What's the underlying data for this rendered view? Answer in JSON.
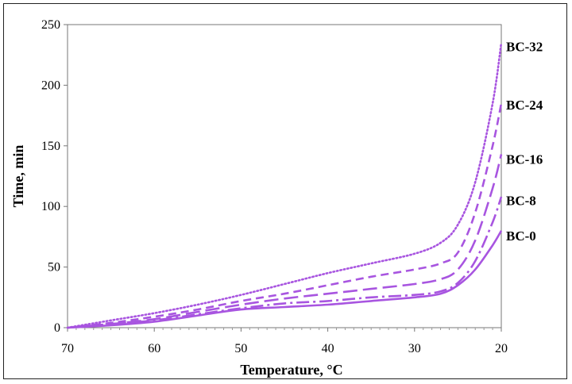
{
  "chart_data": {
    "type": "line",
    "title": "",
    "xlabel": "Temperature, °C",
    "ylabel": "Time, min",
    "xlim": [
      70,
      20
    ],
    "ylim": [
      0,
      250
    ],
    "xticks": [
      70,
      60,
      50,
      40,
      30,
      20
    ],
    "yticks": [
      0,
      50,
      100,
      150,
      200,
      250
    ],
    "grid": false,
    "line_color": "#a855e0",
    "series": [
      {
        "name": "BC-32",
        "style": "dotted",
        "points": [
          [
            70,
            0
          ],
          [
            65,
            6
          ],
          [
            60,
            12
          ],
          [
            55,
            19
          ],
          [
            50,
            27
          ],
          [
            45,
            36
          ],
          [
            40,
            45
          ],
          [
            35,
            53
          ],
          [
            30,
            61
          ],
          [
            27,
            70
          ],
          [
            25,
            85
          ],
          [
            23,
            120
          ],
          [
            21,
            185
          ],
          [
            20,
            235
          ]
        ]
      },
      {
        "name": "BC-24",
        "style": "dashed",
        "points": [
          [
            70,
            0
          ],
          [
            65,
            4
          ],
          [
            60,
            9
          ],
          [
            55,
            15
          ],
          [
            50,
            22
          ],
          [
            45,
            28
          ],
          [
            40,
            35
          ],
          [
            35,
            42
          ],
          [
            30,
            48
          ],
          [
            27,
            53
          ],
          [
            25,
            62
          ],
          [
            23,
            95
          ],
          [
            21,
            150
          ],
          [
            20,
            185
          ]
        ]
      },
      {
        "name": "BC-16",
        "style": "long-dash",
        "points": [
          [
            70,
            0
          ],
          [
            65,
            3
          ],
          [
            60,
            7
          ],
          [
            55,
            13
          ],
          [
            50,
            19
          ],
          [
            45,
            24
          ],
          [
            40,
            28
          ],
          [
            35,
            32
          ],
          [
            30,
            36
          ],
          [
            27,
            40
          ],
          [
            25,
            48
          ],
          [
            23,
            72
          ],
          [
            21,
            115
          ],
          [
            20,
            143
          ]
        ]
      },
      {
        "name": "BC-8",
        "style": "dash-dot",
        "points": [
          [
            70,
            0
          ],
          [
            65,
            3
          ],
          [
            60,
            6
          ],
          [
            55,
            11
          ],
          [
            50,
            16
          ],
          [
            45,
            20
          ],
          [
            40,
            22
          ],
          [
            35,
            25
          ],
          [
            30,
            27
          ],
          [
            27,
            30
          ],
          [
            25,
            37
          ],
          [
            23,
            55
          ],
          [
            21,
            87
          ],
          [
            20,
            108
          ]
        ]
      },
      {
        "name": "BC-0",
        "style": "solid",
        "points": [
          [
            70,
            0
          ],
          [
            65,
            2
          ],
          [
            60,
            5
          ],
          [
            55,
            10
          ],
          [
            50,
            15
          ],
          [
            45,
            17
          ],
          [
            40,
            19
          ],
          [
            35,
            22
          ],
          [
            30,
            25
          ],
          [
            27,
            28
          ],
          [
            25,
            35
          ],
          [
            23,
            48
          ],
          [
            21,
            68
          ],
          [
            20,
            80
          ]
        ]
      }
    ],
    "series_labels": [
      {
        "text": "BC-32",
        "y": 232
      },
      {
        "text": "BC-24",
        "y": 184
      },
      {
        "text": "BC-16",
        "y": 139
      },
      {
        "text": "BC-8",
        "y": 105
      },
      {
        "text": "BC-0",
        "y": 76
      }
    ]
  }
}
